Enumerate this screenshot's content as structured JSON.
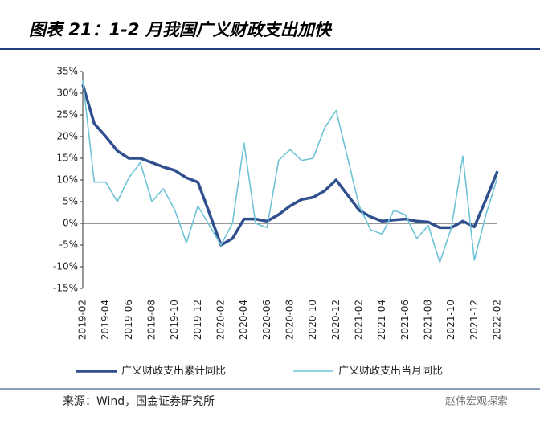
{
  "chart_data": {
    "type": "line",
    "title": "图表 21：1-2 月我国广义财政支出加快",
    "source": "来源：Wind，国金证券研究所",
    "watermark": "赵伟宏观探索",
    "categories": [
      "2019-02",
      null,
      "2019-04",
      null,
      "2019-06",
      null,
      "2019-08",
      null,
      "2019-10",
      null,
      "2019-12",
      null,
      "2020-02",
      null,
      "2020-04",
      null,
      "2020-06",
      null,
      "2020-08",
      null,
      "2020-10",
      null,
      "2020-12",
      null,
      "2021-02",
      null,
      "2021-04",
      null,
      "2021-06",
      null,
      "2021-08",
      null,
      "2021-10",
      null,
      "2021-12",
      null,
      "2022-02"
    ],
    "series": [
      {
        "name": "广义财政支出累计同比",
        "color": "#2f4f8f",
        "width": 3.5,
        "values": [
          32,
          23,
          20,
          16.7,
          15,
          15,
          14,
          13,
          12.2,
          10.5,
          9.5,
          2.3,
          -5,
          -3.5,
          1,
          1,
          0.5,
          2,
          4,
          5.5,
          6,
          7.5,
          10,
          6.5,
          3,
          1.5,
          0.5,
          0.8,
          1,
          0.5,
          0.3,
          -1,
          -1,
          0.5,
          -0.8,
          5.5,
          12
        ]
      },
      {
        "name": "广义财政支出当月同比",
        "color": "#6fc3d6",
        "width": 1.6,
        "values": [
          33,
          9.5,
          9.5,
          5,
          10.5,
          14,
          5,
          8,
          3,
          -4.5,
          4,
          -0.5,
          -5,
          0,
          18.5,
          0,
          -1,
          14.5,
          17,
          14.5,
          15,
          22,
          26,
          15,
          4,
          -1.5,
          -2.5,
          3,
          2,
          -3.5,
          -0.5,
          -9,
          -1,
          15.5,
          -8.5,
          2,
          10.5
        ]
      }
    ],
    "ylim": [
      -15,
      35
    ],
    "yticks": [
      {
        "value": -15,
        "label": "-15%"
      },
      {
        "value": -10,
        "label": "-10%"
      },
      {
        "value": -5,
        "label": "-5%"
      },
      {
        "value": 0,
        "label": "0%"
      },
      {
        "value": 5,
        "label": "5%"
      },
      {
        "value": 10,
        "label": "10%"
      },
      {
        "value": 15,
        "label": "15%"
      },
      {
        "value": 20,
        "label": "20%"
      },
      {
        "value": 25,
        "label": "25%"
      },
      {
        "value": 30,
        "label": "30%"
      },
      {
        "value": 35,
        "label": "35%"
      }
    ]
  }
}
